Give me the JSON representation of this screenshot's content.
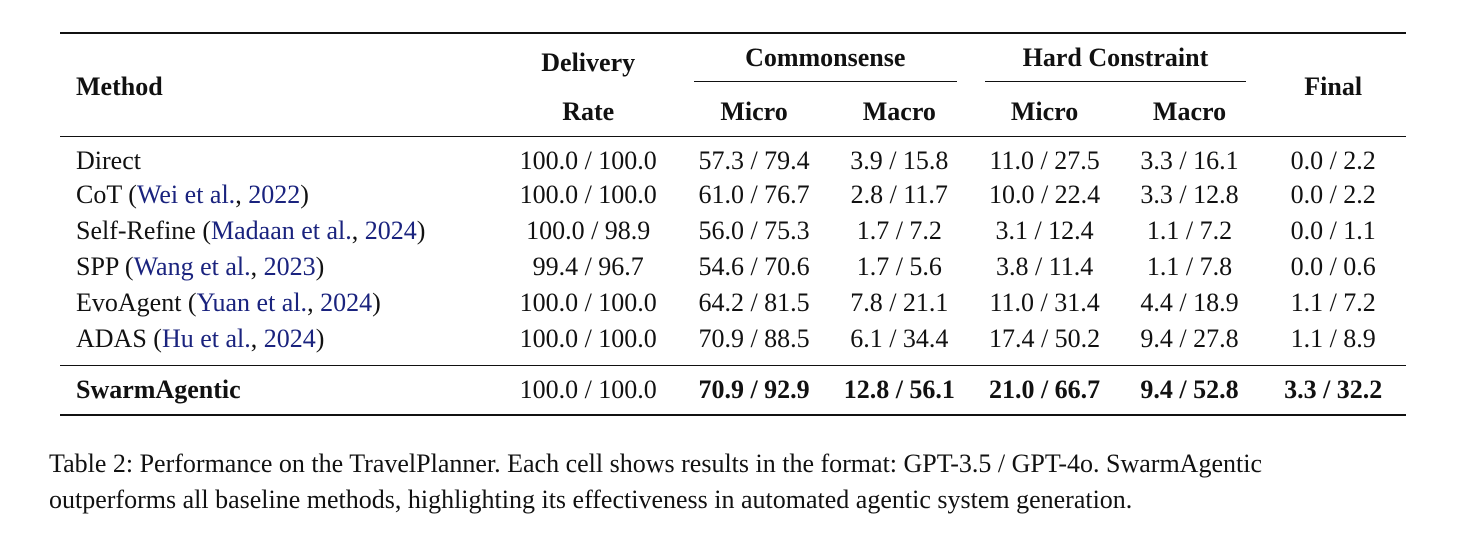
{
  "table": {
    "headers": {
      "method": "Method",
      "delivery_line1": "Delivery",
      "delivery_line2": "Rate",
      "commonsense": "Commonsense",
      "hard_constraint": "Hard Constraint",
      "micro": "Micro",
      "macro": "Macro",
      "final": "Final"
    },
    "rows": [
      {
        "name": "Direct",
        "cite": "",
        "year": "",
        "delivery": "100.0 / 100.0",
        "cs_micro": "57.3 / 79.4",
        "cs_macro": "3.9 / 15.8",
        "hc_micro": "11.0 / 27.5",
        "hc_macro": "3.3 / 16.1",
        "final": "0.0 / 2.2"
      },
      {
        "name": "CoT",
        "cite": "Wei et al.",
        "year": "2022",
        "delivery": "100.0 / 100.0",
        "cs_micro": "61.0 / 76.7",
        "cs_macro": "2.8 / 11.7",
        "hc_micro": "10.0 / 22.4",
        "hc_macro": "3.3 / 12.8",
        "final": "0.0 / 2.2"
      },
      {
        "name": "Self-Refine",
        "cite": "Madaan et al.",
        "year": "2024",
        "delivery": "100.0 / 98.9",
        "cs_micro": "56.0 / 75.3",
        "cs_macro": "1.7 / 7.2",
        "hc_micro": "3.1 / 12.4",
        "hc_macro": "1.1 / 7.2",
        "final": "0.0 / 1.1"
      },
      {
        "name": "SPP",
        "cite": "Wang et al.",
        "year": "2023",
        "delivery": "99.4 / 96.7",
        "cs_micro": "54.6 / 70.6",
        "cs_macro": "1.7 / 5.6",
        "hc_micro": "3.8 / 11.4",
        "hc_macro": "1.1 / 7.8",
        "final": "0.0 / 0.6"
      },
      {
        "name": "EvoAgent",
        "cite": "Yuan et al.",
        "year": "2024",
        "delivery": "100.0 / 100.0",
        "cs_micro": "64.2 / 81.5",
        "cs_macro": "7.8 / 21.1",
        "hc_micro": "11.0 / 31.4",
        "hc_macro": "4.4 / 18.9",
        "final": "1.1 / 7.2"
      },
      {
        "name": "ADAS",
        "cite": "Hu et al.",
        "year": "2024",
        "delivery": "100.0 / 100.0",
        "cs_micro": "70.9 / 88.5",
        "cs_macro": "6.1 / 34.4",
        "hc_micro": "17.4 / 50.2",
        "hc_macro": "9.4 / 27.8",
        "final": "1.1 / 8.9"
      }
    ],
    "final_row": {
      "name": "SwarmAgentic",
      "delivery": "100.0 / 100.0",
      "cs_micro": "70.9 / 92.9",
      "cs_macro": "12.8 / 56.1",
      "hc_micro": "21.0 / 66.7",
      "hc_macro": "9.4 / 52.8",
      "final": "3.3 / 32.2"
    }
  },
  "caption": {
    "line1": "Table 2: Performance on the TravelPlanner. Each cell shows results in the format: GPT-3.5 / GPT-4o. SwarmAgentic",
    "line2": "outperforms all baseline methods, highlighting its effectiveness in automated agentic system generation."
  },
  "colors": {
    "text": "#111111",
    "citation": "#1a237e"
  }
}
